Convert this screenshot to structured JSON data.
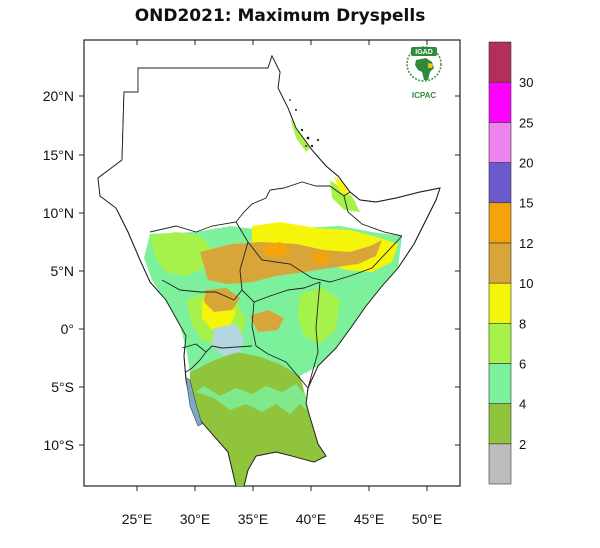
{
  "title": "OND2021: Maximum Dryspells",
  "logo": {
    "top_text": "IGAD",
    "bottom_text": "ICPAC"
  },
  "axes": {
    "lat_ticks": [
      "20°N",
      "15°N",
      "10°N",
      "5°N",
      "0°",
      "5°S",
      "10°S"
    ],
    "lon_ticks": [
      "25°E",
      "30°E",
      "35°E",
      "40°E",
      "45°E",
      "50°E"
    ]
  },
  "colorbar": {
    "labels": [
      "2",
      "4",
      "6",
      "8",
      "10",
      "12",
      "15",
      "20",
      "25",
      "30"
    ],
    "colors": [
      "#bdbdbd",
      "#8fc43c",
      "#7cf09a",
      "#a7f24a",
      "#f5f50a",
      "#d8a53a",
      "#f5a30a",
      "#6a5acd",
      "#ee82ee",
      "#ff00ff",
      "#b0305a"
    ]
  }
}
